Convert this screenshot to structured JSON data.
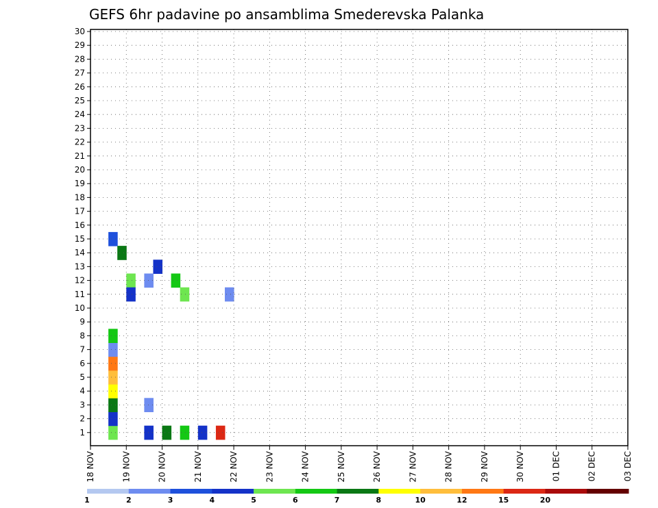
{
  "chart_data": {
    "type": "heatmap",
    "title": "GEFS 6hr padavine po ansamblima Smederevska Palanka",
    "xlabel": "",
    "ylabel": "",
    "ylim": [
      0,
      30
    ],
    "y_ticks": [
      "1",
      "2",
      "3",
      "4",
      "5",
      "6",
      "7",
      "8",
      "9",
      "10",
      "11",
      "12",
      "13",
      "14",
      "15",
      "16",
      "17",
      "18",
      "19",
      "20",
      "21",
      "22",
      "23",
      "24",
      "25",
      "26",
      "27",
      "28",
      "29",
      "30"
    ],
    "x_ticks": [
      "18 NOV",
      "19 NOV",
      "20 NOV",
      "21 NOV",
      "22 NOV",
      "23 NOV",
      "24 NOV",
      "25 NOV",
      "26 NOV",
      "27 NOV",
      "28 NOV",
      "29 NOV",
      "30 NOV",
      "01 DEC",
      "02 DEC",
      "03 DEC"
    ],
    "x_range_days": [
      0,
      15
    ],
    "grid": true,
    "colorbar": {
      "ticks": [
        "1",
        "2",
        "3",
        "4",
        "5",
        "6",
        "7",
        "8",
        "10",
        "12",
        "15",
        "20"
      ],
      "colors": [
        "#b4c8f0",
        "#6e8cf0",
        "#1e50dc",
        "#1432c8",
        "#6ee650",
        "#14c814",
        "#0a7814",
        "#ffff00",
        "#ffbe3c",
        "#ff7814",
        "#dc2814",
        "#aa0a0a",
        "#640000"
      ]
    },
    "cells": [
      [
        0.5,
        1,
        4
      ],
      [
        0.5,
        2,
        3
      ],
      [
        0.5,
        3,
        6
      ],
      [
        0.5,
        4,
        7
      ],
      [
        0.5,
        5,
        8
      ],
      [
        0.5,
        6,
        9
      ],
      [
        0.5,
        7,
        1
      ],
      [
        0.5,
        8,
        5
      ],
      [
        1.5,
        1,
        3
      ],
      [
        1.5,
        3,
        1
      ],
      [
        2.0,
        1,
        6
      ],
      [
        2.5,
        1,
        5
      ],
      [
        3.0,
        1,
        3
      ],
      [
        3.5,
        1,
        10
      ],
      [
        0.5,
        15,
        2
      ],
      [
        0.75,
        14,
        6
      ],
      [
        1.75,
        13,
        3
      ],
      [
        1.0,
        12,
        4
      ],
      [
        1.5,
        12,
        1
      ],
      [
        2.25,
        12,
        5
      ],
      [
        1.0,
        11,
        3
      ],
      [
        3.75,
        11,
        1
      ],
      [
        2.5,
        11,
        4
      ]
    ]
  }
}
